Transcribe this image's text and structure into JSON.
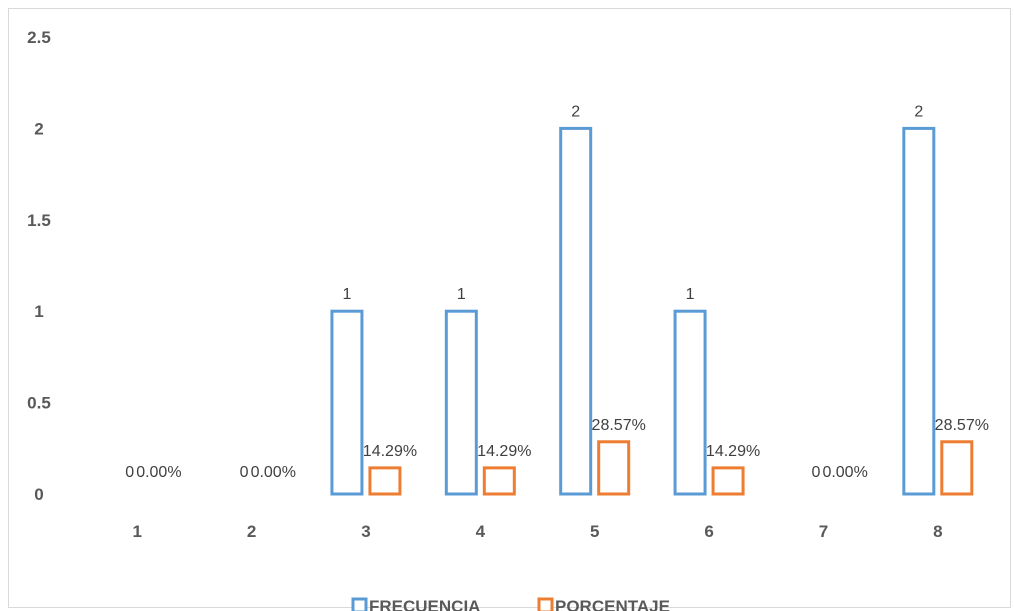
{
  "chart_data": {
    "type": "bar",
    "categories": [
      "1",
      "2",
      "3",
      "4",
      "5",
      "6",
      "7",
      "8"
    ],
    "series": [
      {
        "name": "FRECUENCIA",
        "values": [
          0,
          0,
          1,
          1,
          2,
          1,
          0,
          2
        ],
        "labels": [
          "0",
          "0",
          "1",
          "1",
          "2",
          "1",
          "0",
          "2"
        ],
        "color": "#5b9bd5"
      },
      {
        "name": "PORCENTAJE",
        "values": [
          0,
          0,
          0.1429,
          0.1429,
          0.2857,
          0.1429,
          0,
          0.2857
        ],
        "labels": [
          "0.00%",
          "0.00%",
          "14.29%",
          "14.29%",
          "28.57%",
          "14.29%",
          "0.00%",
          "28.57%"
        ],
        "color": "#ed7d31"
      }
    ],
    "y_ticks": [
      "0",
      "0.5",
      "1",
      "1.5",
      "2",
      "2.5"
    ],
    "ylim": [
      0,
      2.5
    ],
    "grid": false,
    "legend": "bottom",
    "bar_style": "outline"
  }
}
